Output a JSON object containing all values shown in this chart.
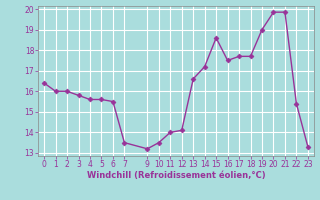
{
  "x": [
    0,
    1,
    2,
    3,
    4,
    5,
    6,
    7,
    9,
    10,
    11,
    12,
    13,
    14,
    15,
    16,
    17,
    18,
    19,
    20,
    21,
    22,
    23
  ],
  "y": [
    16.4,
    16.0,
    16.0,
    15.8,
    15.6,
    15.6,
    15.5,
    13.5,
    13.2,
    13.5,
    14.0,
    14.1,
    16.6,
    17.2,
    18.6,
    17.5,
    17.7,
    17.7,
    19.0,
    19.85,
    19.85,
    15.4,
    13.3
  ],
  "xlim": [
    -0.5,
    23.5
  ],
  "ylim": [
    12.85,
    20.15
  ],
  "yticks": [
    13,
    14,
    15,
    16,
    17,
    18,
    19,
    20
  ],
  "xticks": [
    0,
    1,
    2,
    3,
    4,
    5,
    6,
    7,
    9,
    10,
    11,
    12,
    13,
    14,
    15,
    16,
    17,
    18,
    19,
    20,
    21,
    22,
    23
  ],
  "xlabel": "Windchill (Refroidissement éolien,°C)",
  "line_color": "#993399",
  "marker": "D",
  "marker_size": 2.5,
  "bg_color": "#aadddd",
  "grid_color": "#ffffff",
  "text_color": "#993399",
  "spine_color": "#888888",
  "tick_fontsize": 5.5,
  "xlabel_fontsize": 6,
  "linewidth": 1.0
}
